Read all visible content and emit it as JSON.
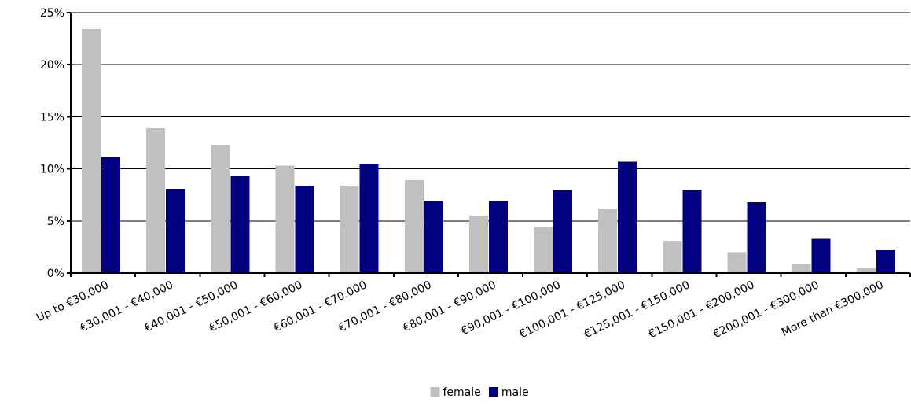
{
  "chart_data": {
    "type": "bar",
    "title": "",
    "xlabel": "",
    "ylabel": "",
    "ylim": [
      0,
      25
    ],
    "y_ticks": [
      0,
      5,
      10,
      15,
      20,
      25
    ],
    "y_tick_format": "percent",
    "grid": "horizontal",
    "legend_position": "bottom-center",
    "categories": [
      "Up to €30,000",
      "€30,001 - €40,000",
      "€40,001 - €50,000",
      "€50,001 - €60,000",
      "€60,001 - €70,000",
      "€70,001 - €80,000",
      "€80,001 - €90,000",
      "€90,001 - €100,000",
      "€100,001 - €125,000",
      "€125,001 - €150,000",
      "€150,001 - €200,000",
      "€200,001 - €300,000",
      "More than €300,000"
    ],
    "series": [
      {
        "name": "female",
        "color": "#c0c0c0",
        "values": [
          23.4,
          13.9,
          12.3,
          10.3,
          8.4,
          8.9,
          5.5,
          4.4,
          6.2,
          3.1,
          2.0,
          0.9,
          0.5
        ]
      },
      {
        "name": "male",
        "color": "#000080",
        "values": [
          11.1,
          8.1,
          9.3,
          8.4,
          10.5,
          6.9,
          6.9,
          8.0,
          10.7,
          8.0,
          6.8,
          3.3,
          2.2
        ]
      }
    ]
  }
}
